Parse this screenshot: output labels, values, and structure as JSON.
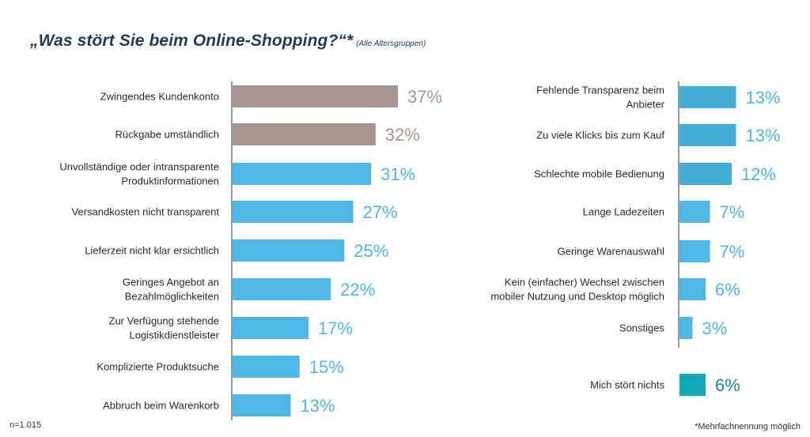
{
  "title": "„Was stört Sie beim Online-Shopping?“*",
  "subtitle": "(Alle Altersgruppen)",
  "footnote_left": "n=1.015",
  "footnote_right": "*Mehrfachnennung möglich",
  "colors": {
    "highlight": "#a99490",
    "default": "#4db8e6",
    "right_dark": "#42aed6",
    "none": "#11a9b5",
    "axis": "#1f3b5c"
  },
  "chart_data": [
    {
      "type": "bar",
      "orientation": "horizontal",
      "categories": [
        "Zwingendes Kundenkonto",
        "Rückgabe umständlich",
        "Unvollständige oder intransparente\nProduktinformationen",
        "Versandkosten nicht transparent",
        "Lieferzeit nicht klar ersichtlich",
        "Geringes Angebot an\nBezahlmöglichkeiten",
        "Zur Verfügung stehende\nLogistikdienstleister",
        "Komplizierte Produktsuche",
        "Abbruch beim Warenkorb"
      ],
      "values": [
        37,
        32,
        31,
        27,
        25,
        22,
        17,
        15,
        13
      ],
      "labels": [
        "37%",
        "32%",
        "31%",
        "27%",
        "25%",
        "22%",
        "17%",
        "15%",
        "13%"
      ],
      "colors": [
        "highlight",
        "highlight",
        "default",
        "default",
        "default",
        "default",
        "default",
        "default",
        "default"
      ],
      "unit": "%"
    },
    {
      "type": "bar",
      "orientation": "horizontal",
      "categories": [
        "Fehlende Transparenz beim\nAnbieter",
        "Zu viele Klicks bis zum Kauf",
        "Schlechte mobile Bedienung",
        "Lange Ladezeiten",
        "Geringe Warenauswahl",
        "Kein (einfacher) Wechsel zwischen\nmobiler Nutzung und Desktop möglich",
        "Sonstiges",
        "Mich stört nichts"
      ],
      "values": [
        13,
        13,
        12,
        7,
        7,
        6,
        3,
        6
      ],
      "labels": [
        "13%",
        "13%",
        "12%",
        "7%",
        "7%",
        "6%",
        "3%",
        "6%"
      ],
      "colors": [
        "right_dark",
        "right_dark",
        "right_dark",
        "default",
        "default",
        "default",
        "default",
        "none"
      ],
      "unit": "%"
    }
  ]
}
